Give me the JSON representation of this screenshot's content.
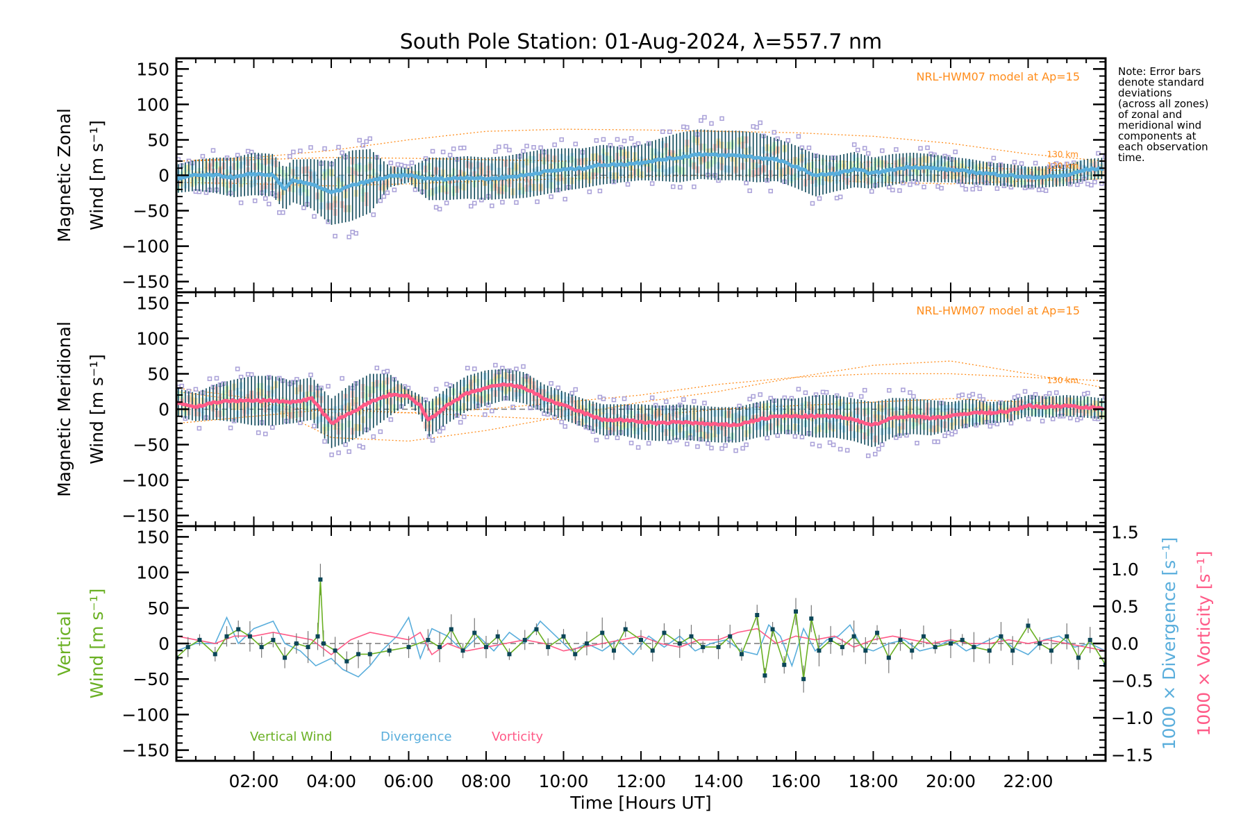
{
  "chart_data": [
    {
      "type": "line",
      "title": "South Pole Station: 01-Aug-2024, λ=557.7 nm",
      "panel": "zonal",
      "ylabel_line1": "Magnetic Zonal",
      "ylabel_line2": "Wind [m s⁻¹]",
      "ylim": [
        -165,
        165
      ],
      "xlim": [
        0,
        24
      ],
      "yticks": [
        -150,
        -100,
        -50,
        0,
        50,
        100,
        150
      ],
      "ytick_labels": [
        "−150",
        "−100",
        "−50",
        "0",
        "50",
        "100",
        "150"
      ],
      "model_label": "NRL-HWM07 model at Ap=15",
      "model_altitude_labels": [
        "130 km",
        "120 km"
      ],
      "mean_color": "#5aaedc",
      "mean": {
        "x": [
          0,
          0.5,
          1,
          1.5,
          2,
          2.5,
          2.8,
          3,
          3.5,
          4,
          4.5,
          5,
          5.5,
          6,
          6.5,
          7,
          7.5,
          8,
          8.5,
          9,
          9.5,
          10,
          10.5,
          11,
          11.5,
          12,
          12.5,
          13,
          13.5,
          14,
          14.5,
          15,
          15.5,
          16,
          16.5,
          17,
          17.5,
          18,
          18.5,
          19,
          19.5,
          20,
          20.5,
          21,
          21.5,
          22,
          22.5,
          23,
          23.5,
          24
        ],
        "y": [
          -5,
          0,
          0,
          -3,
          2,
          0,
          -20,
          -8,
          -12,
          -25,
          -15,
          -8,
          -2,
          0,
          -5,
          -5,
          -3,
          -5,
          -3,
          0,
          5,
          8,
          10,
          15,
          15,
          18,
          22,
          25,
          30,
          28,
          28,
          25,
          22,
          12,
          0,
          2,
          8,
          3,
          8,
          12,
          10,
          8,
          5,
          2,
          0,
          -3,
          -2,
          0,
          8,
          10
        ],
        "sd": [
          20,
          22,
          25,
          28,
          30,
          30,
          30,
          30,
          35,
          45,
          50,
          45,
          15,
          10,
          30,
          30,
          30,
          30,
          30,
          32,
          32,
          30,
          28,
          28,
          25,
          25,
          30,
          35,
          35,
          35,
          35,
          35,
          30,
          30,
          30,
          25,
          25,
          22,
          22,
          20,
          20,
          18,
          18,
          16,
          16,
          15,
          15,
          15,
          15,
          15
        ]
      },
      "model_curves": [
        {
          "name": "130 km",
          "x": [
            0,
            2,
            4,
            6,
            8,
            10,
            12,
            14,
            16,
            18,
            20,
            22,
            24
          ],
          "y": [
            20,
            25,
            35,
            50,
            62,
            65,
            64,
            62,
            60,
            55,
            45,
            30,
            20
          ]
        },
        {
          "name": "120 km",
          "x": [
            0,
            2,
            4,
            6,
            8,
            10,
            12,
            14,
            16,
            18,
            20,
            22,
            24
          ],
          "y": [
            20,
            22,
            25,
            24,
            22,
            20,
            22,
            25,
            22,
            18,
            12,
            8,
            5
          ]
        },
        {
          "name": "model-low",
          "x": [
            0,
            2,
            4,
            6,
            8,
            10,
            12,
            14,
            16,
            18,
            20,
            22,
            24
          ],
          "y": [
            -10,
            -12,
            -15,
            -12,
            -8,
            -5,
            -2,
            0,
            -5,
            -10,
            -12,
            -8,
            -5
          ]
        }
      ]
    },
    {
      "type": "line",
      "panel": "meridional",
      "ylabel_line1": "Magnetic Meridional",
      "ylabel_line2": "Wind [m s⁻¹]",
      "ylim": [
        -165,
        165
      ],
      "xlim": [
        0,
        24
      ],
      "yticks": [
        -150,
        -100,
        -50,
        0,
        50,
        100,
        150
      ],
      "ytick_labels": [
        "−150",
        "−100",
        "−50",
        "0",
        "50",
        "100",
        "150"
      ],
      "model_label": "NRL-HWM07 model at Ap=15",
      "model_altitude_labels": [
        "130 km"
      ],
      "mean_color": "#ff5a87",
      "mean": {
        "x": [
          0,
          0.5,
          1,
          1.5,
          2,
          2.5,
          3,
          3.5,
          4,
          4.5,
          5,
          5.5,
          6,
          6.3,
          6.5,
          7,
          7.5,
          8,
          8.5,
          9,
          9.5,
          10,
          10.5,
          11,
          11.5,
          12,
          12.5,
          13,
          13.5,
          14,
          14.5,
          15,
          15.5,
          16,
          16.5,
          17,
          17.5,
          18,
          18.5,
          19,
          19.5,
          20,
          20.5,
          21,
          21.5,
          22,
          22.5,
          23,
          23.5,
          24
        ],
        "y": [
          10,
          3,
          10,
          12,
          12,
          12,
          10,
          15,
          -20,
          -5,
          10,
          20,
          18,
          5,
          -15,
          5,
          22,
          30,
          35,
          30,
          15,
          5,
          -5,
          -15,
          -15,
          -18,
          -20,
          -18,
          -20,
          -22,
          -22,
          -15,
          -10,
          -10,
          -10,
          -10,
          -15,
          -22,
          -12,
          -10,
          -12,
          -10,
          -5,
          -5,
          -3,
          5,
          3,
          5,
          3,
          0
        ],
        "sd": [
          20,
          20,
          25,
          30,
          35,
          35,
          30,
          30,
          35,
          40,
          40,
          30,
          10,
          15,
          25,
          25,
          25,
          25,
          22,
          22,
          20,
          20,
          20,
          22,
          22,
          25,
          25,
          25,
          25,
          25,
          25,
          25,
          25,
          25,
          30,
          30,
          30,
          32,
          28,
          25,
          25,
          20,
          20,
          15,
          15,
          15,
          15,
          15,
          15,
          15
        ]
      },
      "model_curves": [
        {
          "name": "130 km",
          "x": [
            0,
            2,
            4,
            6,
            8,
            10,
            12,
            14,
            16,
            18,
            20,
            22,
            24
          ],
          "y": [
            30,
            15,
            -40,
            -45,
            -30,
            -10,
            10,
            25,
            45,
            62,
            68,
            50,
            30
          ]
        },
        {
          "name": "120 km",
          "x": [
            0,
            2,
            4,
            6,
            8,
            10,
            12,
            14,
            16,
            18,
            20,
            22,
            24
          ],
          "y": [
            25,
            10,
            -5,
            -5,
            0,
            10,
            20,
            35,
            45,
            50,
            50,
            45,
            40
          ]
        },
        {
          "name": "model-low",
          "x": [
            0,
            2,
            4,
            6,
            8,
            10,
            12,
            14,
            16,
            18,
            20,
            22,
            24
          ],
          "y": [
            -20,
            -10,
            0,
            -5,
            -10,
            -15,
            -10,
            0,
            5,
            10,
            15,
            10,
            5
          ]
        }
      ]
    },
    {
      "type": "line",
      "panel": "vertical",
      "ylabel_line1": "Vertical",
      "ylabel_line2": "Wind [m s⁻¹]",
      "ylim": [
        -165,
        165
      ],
      "ylim_right": [
        -1.58,
        1.58
      ],
      "xlim": [
        0,
        24
      ],
      "yticks": [
        -150,
        -100,
        -50,
        0,
        50,
        100,
        150
      ],
      "ytick_labels": [
        "−150",
        "−100",
        "−50",
        "0",
        "50",
        "100",
        "150"
      ],
      "yticks_right": [
        -1.5,
        -1.0,
        -0.5,
        0.0,
        0.5,
        1.0,
        1.5
      ],
      "ytick_right_labels": [
        "−1.5",
        "−1.0",
        "−0.5",
        "0.0",
        "0.5",
        "1.0",
        "1.5"
      ],
      "ylabel_right_div": "1000 × Divergence [s⁻¹]",
      "ylabel_right_vort": "1000 × Vorticity [s⁻¹]",
      "xlabel": "Time [Hours UT]",
      "xticks": [
        2,
        4,
        6,
        8,
        10,
        12,
        14,
        16,
        18,
        20,
        22
      ],
      "xtick_labels": [
        "02:00",
        "04:00",
        "06:00",
        "08:00",
        "10:00",
        "12:00",
        "14:00",
        "16:00",
        "18:00",
        "20:00",
        "22:00"
      ],
      "legend": [
        {
          "label": "Vertical Wind",
          "color": "#6ab023"
        },
        {
          "label": "Divergence",
          "color": "#5aaedc"
        },
        {
          "label": "Vorticity",
          "color": "#ff5a87"
        }
      ],
      "series": [
        {
          "name": "Vertical Wind",
          "unit": "m/s",
          "x": [
            0,
            0.3,
            0.6,
            1,
            1.3,
            1.6,
            1.9,
            2.2,
            2.5,
            2.8,
            3.1,
            3.4,
            3.65,
            3.72,
            3.8,
            4.1,
            4.4,
            4.7,
            5,
            5.5,
            6,
            6.5,
            6.8,
            7.1,
            7.4,
            7.7,
            8,
            8.3,
            8.6,
            9,
            9.3,
            9.6,
            10,
            10.3,
            10.6,
            11,
            11.3,
            11.6,
            12,
            12.3,
            12.6,
            13,
            13.3,
            13.6,
            14,
            14.3,
            14.6,
            15,
            15.2,
            15.4,
            15.7,
            16,
            16.2,
            16.4,
            16.6,
            16.9,
            17.2,
            17.5,
            17.8,
            18.1,
            18.4,
            18.7,
            19,
            19.3,
            19.6,
            20,
            20.3,
            20.6,
            21,
            21.3,
            21.6,
            22,
            22.3,
            22.6,
            23,
            23.3,
            23.6,
            24
          ],
          "y": [
            -20,
            -5,
            5,
            -15,
            10,
            20,
            10,
            -5,
            5,
            -20,
            0,
            -5,
            10,
            90,
            0,
            -10,
            -25,
            -15,
            -15,
            -10,
            -5,
            5,
            -5,
            20,
            -10,
            15,
            -5,
            10,
            -15,
            5,
            20,
            -5,
            10,
            -15,
            0,
            15,
            -10,
            20,
            5,
            -10,
            15,
            0,
            10,
            -5,
            -5,
            10,
            -15,
            40,
            -45,
            20,
            -30,
            45,
            -50,
            35,
            -10,
            5,
            -5,
            10,
            -10,
            15,
            -20,
            5,
            -10,
            10,
            -5,
            0,
            5,
            -5,
            -10,
            10,
            -10,
            25,
            0,
            -10,
            10,
            -20,
            5,
            -30
          ]
        },
        {
          "name": "Divergence",
          "unit": "1000 x s^-1",
          "x": [
            0,
            0.5,
            1,
            1.3,
            1.6,
            2,
            2.5,
            2.8,
            3.2,
            3.6,
            4,
            4.3,
            4.7,
            5,
            5.3,
            5.7,
            6,
            6.3,
            6.6,
            7,
            7.4,
            7.8,
            8.2,
            8.6,
            9,
            9.4,
            9.8,
            10.2,
            10.6,
            11,
            11.4,
            11.8,
            12.2,
            12.6,
            13,
            13.4,
            13.8,
            14.2,
            14.6,
            15,
            15.3,
            15.6,
            15.9,
            16.2,
            16.5,
            16.8,
            17.1,
            17.4,
            17.7,
            18,
            18.4,
            18.8,
            19.2,
            19.6,
            20,
            20.4,
            20.8,
            21.2,
            21.6,
            22,
            22.4,
            22.8,
            23.2,
            23.6,
            24
          ],
          "y": [
            -0.1,
            0.0,
            0.0,
            0.35,
            0.0,
            0.2,
            0.3,
            0.0,
            -0.1,
            -0.3,
            -0.2,
            -0.35,
            -0.45,
            -0.3,
            -0.1,
            0.1,
            0.35,
            -0.2,
            0.2,
            0.1,
            -0.1,
            0.1,
            -0.1,
            0.15,
            0.0,
            0.3,
            0.1,
            -0.1,
            0.0,
            -0.1,
            0.05,
            -0.15,
            0.1,
            -0.05,
            0.1,
            -0.1,
            0.0,
            0.05,
            -0.1,
            -0.15,
            0.25,
            0.1,
            -0.3,
            0.2,
            -0.1,
            0.05,
            0.1,
            0.25,
            -0.05,
            -0.1,
            0.0,
            0.05,
            -0.1,
            -0.05,
            0.05,
            -0.1,
            0.0,
            0.1,
            -0.05,
            -0.15,
            0.05,
            0.1,
            -0.05,
            0.0,
            -0.1
          ]
        },
        {
          "name": "Vorticity",
          "unit": "1000 x s^-1",
          "x": [
            0,
            0.5,
            1,
            1.5,
            2,
            2.5,
            3,
            3.5,
            4,
            4.5,
            5,
            5.5,
            6,
            6.3,
            6.6,
            7,
            7.5,
            8,
            8.5,
            9,
            9.5,
            10,
            10.5,
            11,
            11.5,
            12,
            12.5,
            13,
            13.5,
            14,
            14.5,
            15,
            15.5,
            16,
            16.5,
            17,
            17.5,
            18,
            18.5,
            19,
            19.5,
            20,
            20.5,
            21,
            21.5,
            22,
            22.5,
            23,
            23.5,
            24
          ],
          "y": [
            0.1,
            0.05,
            0.0,
            0.1,
            0.1,
            0.15,
            0.1,
            0.05,
            -0.15,
            0.05,
            0.15,
            0.1,
            0.05,
            0.15,
            -0.15,
            0.0,
            -0.1,
            -0.05,
            0.0,
            0.05,
            0.0,
            -0.1,
            -0.05,
            0.0,
            0.05,
            0.1,
            0.0,
            -0.05,
            0.05,
            0.05,
            0.15,
            0.2,
            0.0,
            0.1,
            0.05,
            0.1,
            -0.05,
            0.05,
            0.1,
            0.05,
            0.0,
            0.05,
            0.0,
            0.0,
            0.05,
            0.0,
            0.05,
            0.0,
            -0.05,
            -0.1
          ]
        }
      ]
    }
  ],
  "note": [
    "Note: Error bars",
    "denote standard",
    "deviations",
    "(across all zones)",
    "of zonal and",
    "meridional wind",
    "components at",
    "each observation",
    "time."
  ]
}
